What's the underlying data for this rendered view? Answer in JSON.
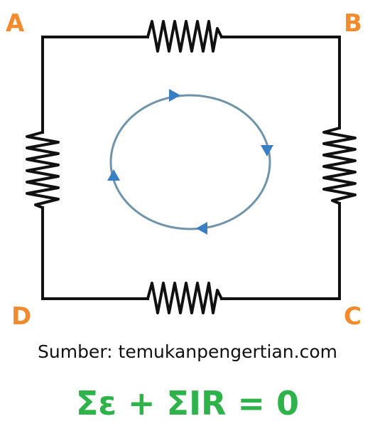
{
  "labels": {
    "a": "A",
    "b": "B",
    "c": "C",
    "d": "D"
  },
  "source": "Sumber: temukanpengertian.com",
  "formula": "Σε + ΣIR = 0",
  "colors": {
    "corner_label": "#f28a2e",
    "formula": "#2db34a",
    "wire": "#111111",
    "loop": "#6f93a8",
    "arrow": "#3a7fc4"
  }
}
